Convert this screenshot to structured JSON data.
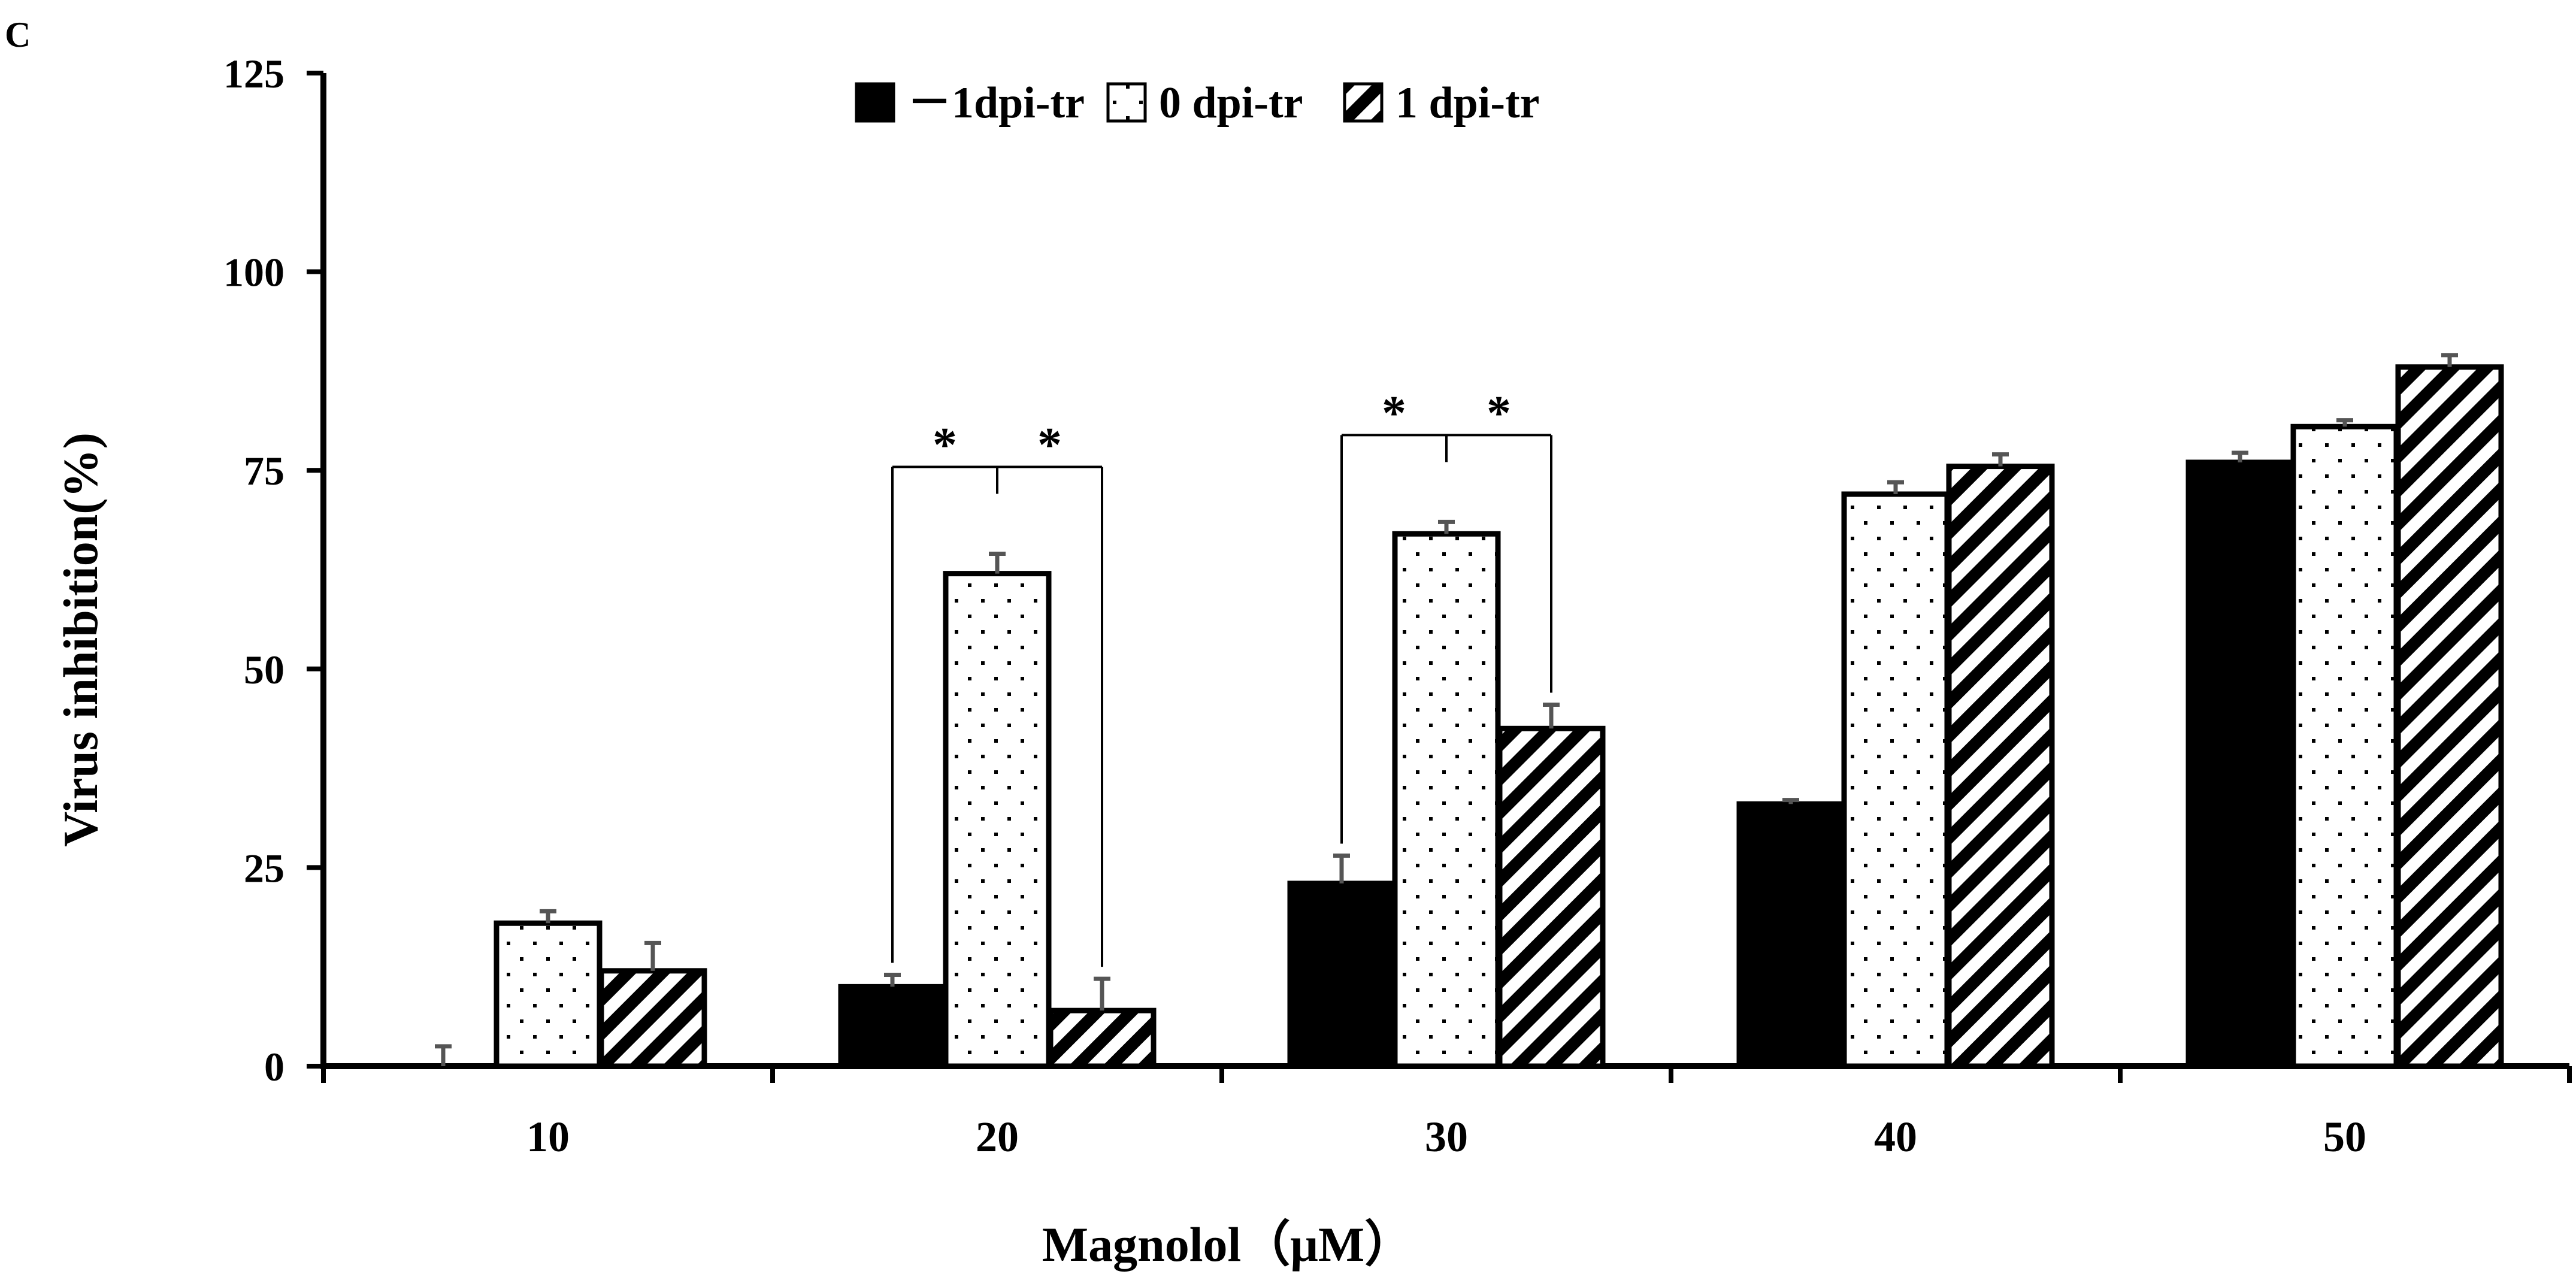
{
  "panel_label": "C",
  "chart_data": {
    "type": "bar",
    "title": "",
    "xlabel": "Magnolol（μM）",
    "ylabel": "Virus inhibition(%)",
    "ylim": [
      0,
      125
    ],
    "yticks": [
      0,
      25,
      50,
      75,
      100,
      125
    ],
    "categories": [
      "10",
      "20",
      "30",
      "40",
      "50"
    ],
    "legend_position": "top-center",
    "series": [
      {
        "name": "－1dpi-tr",
        "pattern": "solid",
        "values": [
          0,
          10,
          23,
          33,
          76
        ],
        "errors": [
          2.5,
          1.5,
          3.5,
          0.5,
          1.2
        ]
      },
      {
        "name": "0 dpi-tr",
        "pattern": "dots",
        "values": [
          18,
          62,
          67,
          72,
          80.5
        ],
        "errors": [
          1.5,
          2.5,
          1.5,
          1.5,
          0.8
        ]
      },
      {
        "name": "1 dpi-tr",
        "pattern": "stripes",
        "values": [
          12,
          7,
          42.5,
          75.5,
          88
        ],
        "errors": [
          3.5,
          4,
          3,
          1.5,
          1.5
        ]
      }
    ],
    "annotations": [
      {
        "category": "20",
        "label_left": "*",
        "label_right": "*"
      },
      {
        "category": "30",
        "label_left": "*",
        "label_right": "*"
      }
    ],
    "colors": {
      "solid": "#000000",
      "pattern": "#000000",
      "background": "#ffffff",
      "errorbar": "#555555"
    }
  }
}
